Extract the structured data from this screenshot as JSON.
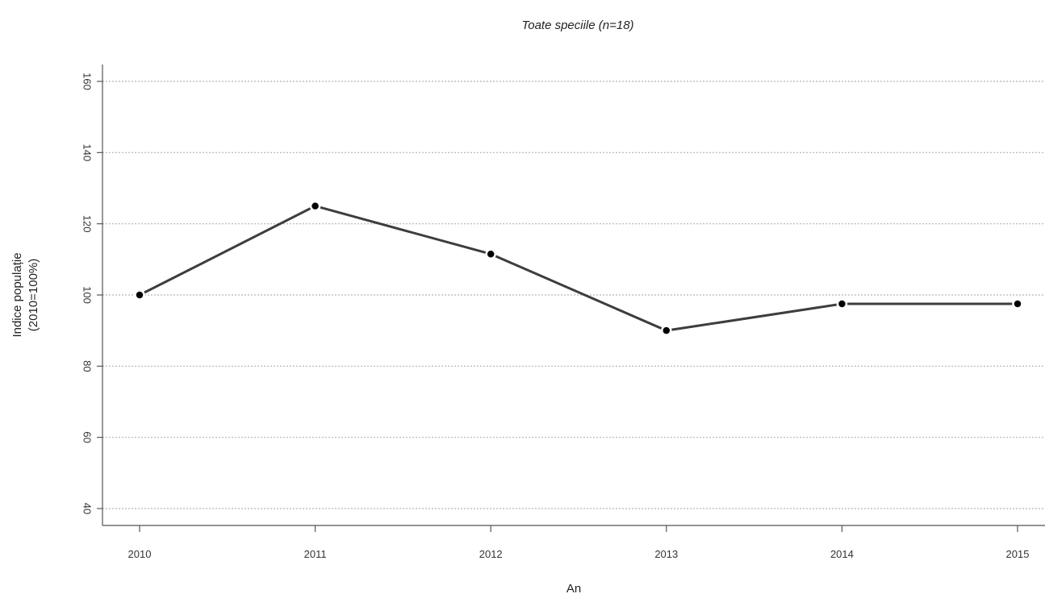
{
  "chart_data": {
    "type": "line",
    "title": "Toate speciile (n=18)",
    "xlabel": "An",
    "ylabel_lines": [
      "Indice populație",
      "(2010=100%)"
    ],
    "x": [
      "2010",
      "2011",
      "2012",
      "2013",
      "2014",
      "2015"
    ],
    "y_ticks": [
      40,
      60,
      80,
      100,
      120,
      140,
      160
    ],
    "ylim": [
      40,
      160
    ],
    "grid": "horizontal dashed",
    "series": [
      {
        "values": [
          100,
          125,
          111.5,
          90,
          97.5,
          97.5
        ]
      }
    ],
    "colors": {
      "line": "#3d3d3d",
      "point": "#000000",
      "grid": "#b5b5b5"
    }
  }
}
